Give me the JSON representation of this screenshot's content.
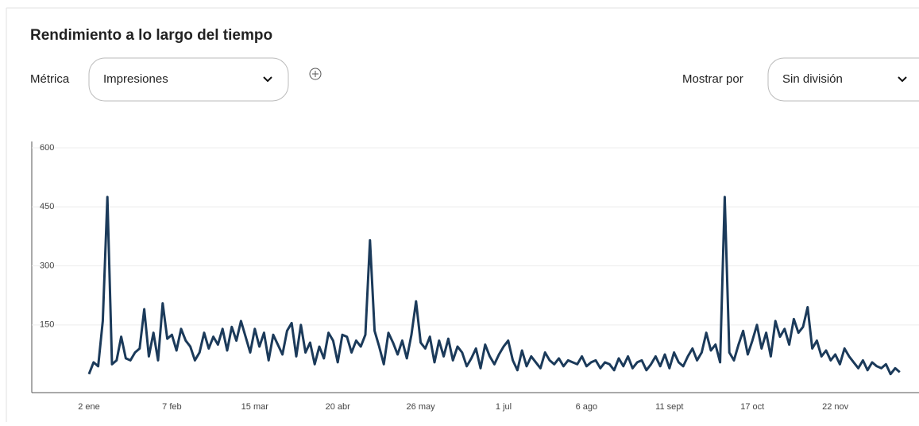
{
  "header": {
    "title": "Rendimiento a lo largo del tiempo"
  },
  "controls": {
    "metric_label": "Métrica",
    "metric_value": "Impresiones",
    "split_label": "Mostrar por",
    "split_value": "Sin división"
  },
  "chart_data": {
    "type": "line",
    "color": "#1b3a5a",
    "categories": [
      "2 ene",
      null,
      null,
      null,
      null,
      null,
      null,
      null,
      null,
      null,
      null,
      null,
      null,
      null,
      null,
      null,
      null,
      null,
      "7 feb",
      null,
      null,
      null,
      null,
      null,
      null,
      null,
      null,
      null,
      null,
      null,
      null,
      null,
      null,
      null,
      null,
      null,
      "15 mar",
      null,
      null,
      null,
      null,
      null,
      null,
      null,
      null,
      null,
      null,
      null,
      null,
      null,
      null,
      null,
      null,
      null,
      "20 abr",
      null,
      null,
      null,
      null,
      null,
      null,
      null,
      null,
      null,
      null,
      null,
      null,
      null,
      null,
      null,
      null,
      null,
      "26 may",
      null,
      null,
      null,
      null,
      null,
      null,
      null,
      null,
      null,
      null,
      null,
      null,
      null,
      null,
      null,
      null,
      null,
      "1 jul",
      null,
      null,
      null,
      null,
      null,
      null,
      null,
      null,
      null,
      null,
      null,
      null,
      null,
      null,
      null,
      null,
      null,
      "6 ago",
      null,
      null,
      null,
      null,
      null,
      null,
      null,
      null,
      null,
      null,
      null,
      null,
      null,
      null,
      null,
      null,
      null,
      "11 sept",
      null,
      null,
      null,
      null,
      null,
      null,
      null,
      null,
      null,
      null,
      null,
      null,
      null,
      null,
      null,
      null,
      null,
      "17 oct",
      null,
      null,
      null,
      null,
      null,
      null,
      null,
      null,
      null,
      null,
      null,
      null,
      null,
      null,
      null,
      null,
      null,
      "22 nov",
      null,
      null,
      null,
      null,
      null,
      null,
      null,
      null,
      null,
      null,
      null,
      null,
      null,
      null
    ],
    "values": [
      25,
      55,
      45,
      160,
      475,
      50,
      60,
      120,
      65,
      60,
      80,
      90,
      190,
      70,
      130,
      60,
      205,
      115,
      125,
      85,
      140,
      110,
      95,
      60,
      80,
      130,
      90,
      120,
      100,
      140,
      85,
      145,
      110,
      160,
      120,
      80,
      140,
      95,
      130,
      60,
      125,
      100,
      75,
      135,
      155,
      70,
      150,
      80,
      105,
      50,
      95,
      65,
      130,
      110,
      55,
      125,
      120,
      80,
      110,
      95,
      125,
      365,
      135,
      95,
      50,
      130,
      105,
      75,
      110,
      65,
      125,
      210,
      105,
      90,
      120,
      55,
      110,
      70,
      115,
      60,
      95,
      80,
      45,
      65,
      90,
      40,
      100,
      70,
      50,
      75,
      95,
      110,
      60,
      35,
      85,
      45,
      70,
      55,
      40,
      80,
      60,
      50,
      65,
      45,
      60,
      55,
      50,
      70,
      45,
      55,
      60,
      40,
      55,
      50,
      35,
      65,
      45,
      70,
      40,
      55,
      60,
      35,
      50,
      70,
      45,
      75,
      40,
      80,
      55,
      45,
      70,
      90,
      60,
      80,
      130,
      85,
      100,
      55,
      475,
      80,
      60,
      100,
      135,
      75,
      110,
      150,
      90,
      130,
      70,
      160,
      120,
      140,
      100,
      165,
      130,
      145,
      195,
      90,
      110,
      70,
      85,
      60,
      75,
      50,
      90,
      70,
      55,
      40,
      60,
      35,
      55,
      45,
      40,
      50,
      25,
      40,
      30
    ],
    "ylim": [
      -22,
      600
    ],
    "yticks": [
      150,
      300,
      450,
      600
    ],
    "grid": true
  }
}
